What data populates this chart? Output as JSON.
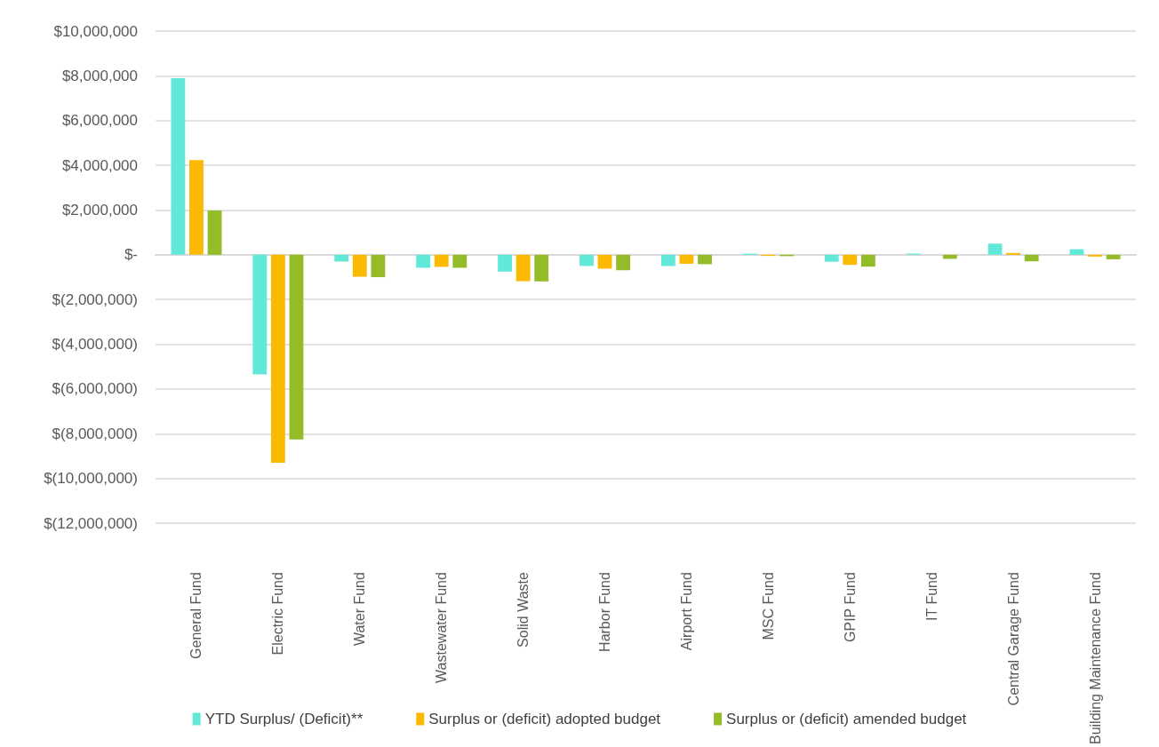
{
  "chart_data": {
    "type": "bar",
    "categories": [
      "General Fund",
      "Electric Fund",
      "Water Fund",
      "Wastewater Fund",
      "Solid Waste",
      "Harbor Fund",
      "Airport Fund",
      "MSC Fund",
      "GPIP Fund",
      "IT Fund",
      "Central Garage Fund",
      "Building Maintenance Fund"
    ],
    "series": [
      {
        "name": "YTD Surplus/ (Deficit)**",
        "color": "#62e8d8",
        "values": [
          7900000,
          -5350000,
          -300000,
          -580000,
          -750000,
          -500000,
          -500000,
          50000,
          -310000,
          50000,
          500000,
          250000
        ]
      },
      {
        "name": "Surplus or (deficit) adopted budget",
        "color": "#fbb900",
        "values": [
          4230000,
          -9300000,
          -980000,
          -540000,
          -1180000,
          -620000,
          -400000,
          -50000,
          -450000,
          0,
          80000,
          -80000
        ]
      },
      {
        "name": "Surplus or (deficit) amended budget",
        "color": "#93bc28",
        "values": [
          1980000,
          -8250000,
          -1000000,
          -580000,
          -1190000,
          -690000,
          -420000,
          -60000,
          -530000,
          -180000,
          -290000,
          -200000
        ]
      }
    ],
    "ylim": [
      -12000000,
      10000000
    ],
    "yticks": [
      {
        "value": -12000000,
        "label": "$(12,000,000)"
      },
      {
        "value": -10000000,
        "label": "$(10,000,000)"
      },
      {
        "value": -8000000,
        "label": "$(8,000,000)"
      },
      {
        "value": -6000000,
        "label": "$(6,000,000)"
      },
      {
        "value": -4000000,
        "label": "$(4,000,000)"
      },
      {
        "value": -2000000,
        "label": "$(2,000,000)"
      },
      {
        "value": 0,
        "label": "$-"
      },
      {
        "value": 2000000,
        "label": "$2,000,000"
      },
      {
        "value": 4000000,
        "label": "$4,000,000"
      },
      {
        "value": 6000000,
        "label": "$6,000,000"
      },
      {
        "value": 8000000,
        "label": "$8,000,000"
      },
      {
        "value": 10000000,
        "label": "$10,000,000"
      }
    ],
    "grid": "y",
    "legend": "bottom"
  }
}
